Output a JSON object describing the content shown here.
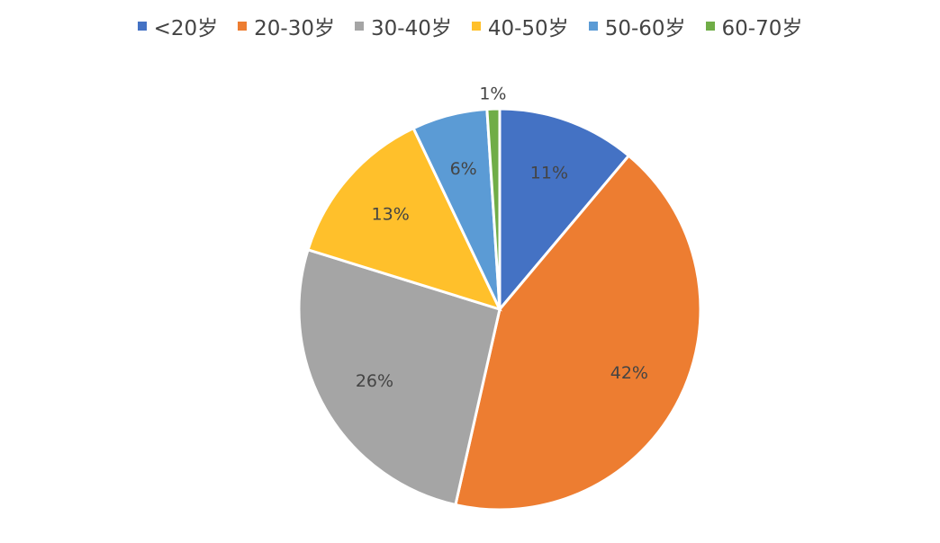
{
  "chart_data": {
    "type": "pie",
    "categories": [
      "<20岁",
      "20-30岁",
      "30-40岁",
      "40-50岁",
      "50-60岁",
      "60-70岁"
    ],
    "values": [
      11,
      42,
      26,
      13,
      6,
      1
    ],
    "data_labels": [
      "11%",
      "42%",
      "26%",
      "13%",
      "6%",
      "1%"
    ],
    "colors": [
      "#4472C4",
      "#ED7D31",
      "#A5A5A5",
      "#FFC02B",
      "#5B9BD5",
      "#70AD47"
    ],
    "legend_position": "top"
  }
}
